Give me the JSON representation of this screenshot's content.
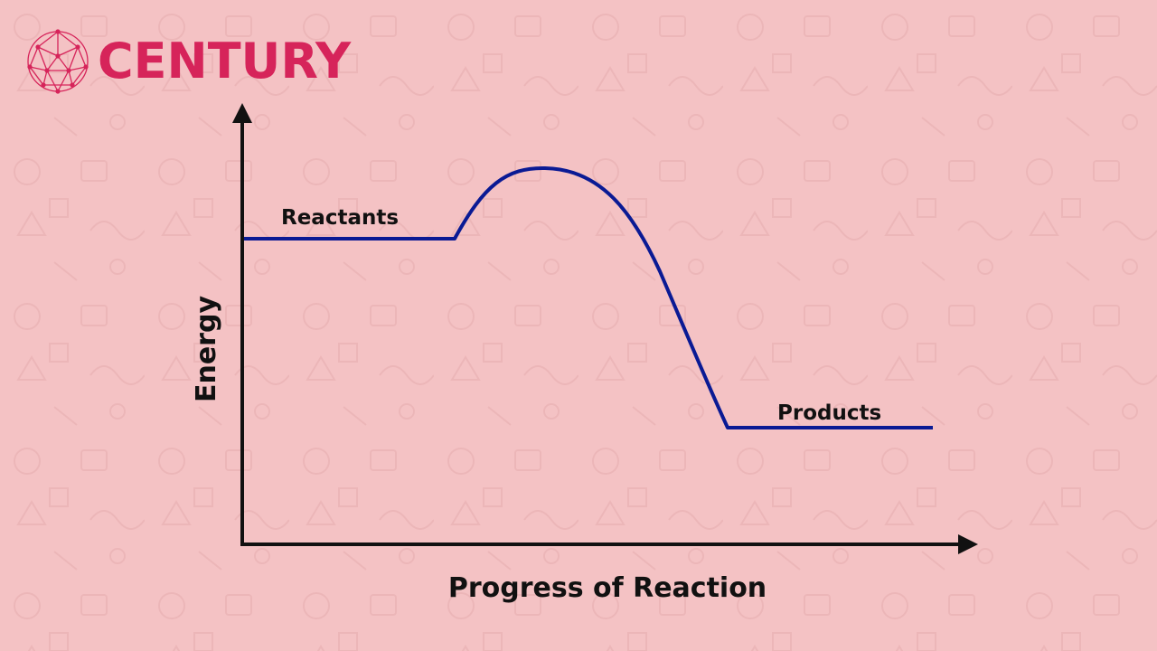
{
  "brand": {
    "name": "CENTURY",
    "color": "#d6245a"
  },
  "colors": {
    "background": "#f4c2c4",
    "axis": "#111111",
    "curve": "#0a1a94",
    "text": "#111111"
  },
  "diagram": {
    "y_axis_label": "Energy",
    "x_axis_label": "Progress of Reaction",
    "reactants_label": "Reactants",
    "products_label": "Products"
  }
}
